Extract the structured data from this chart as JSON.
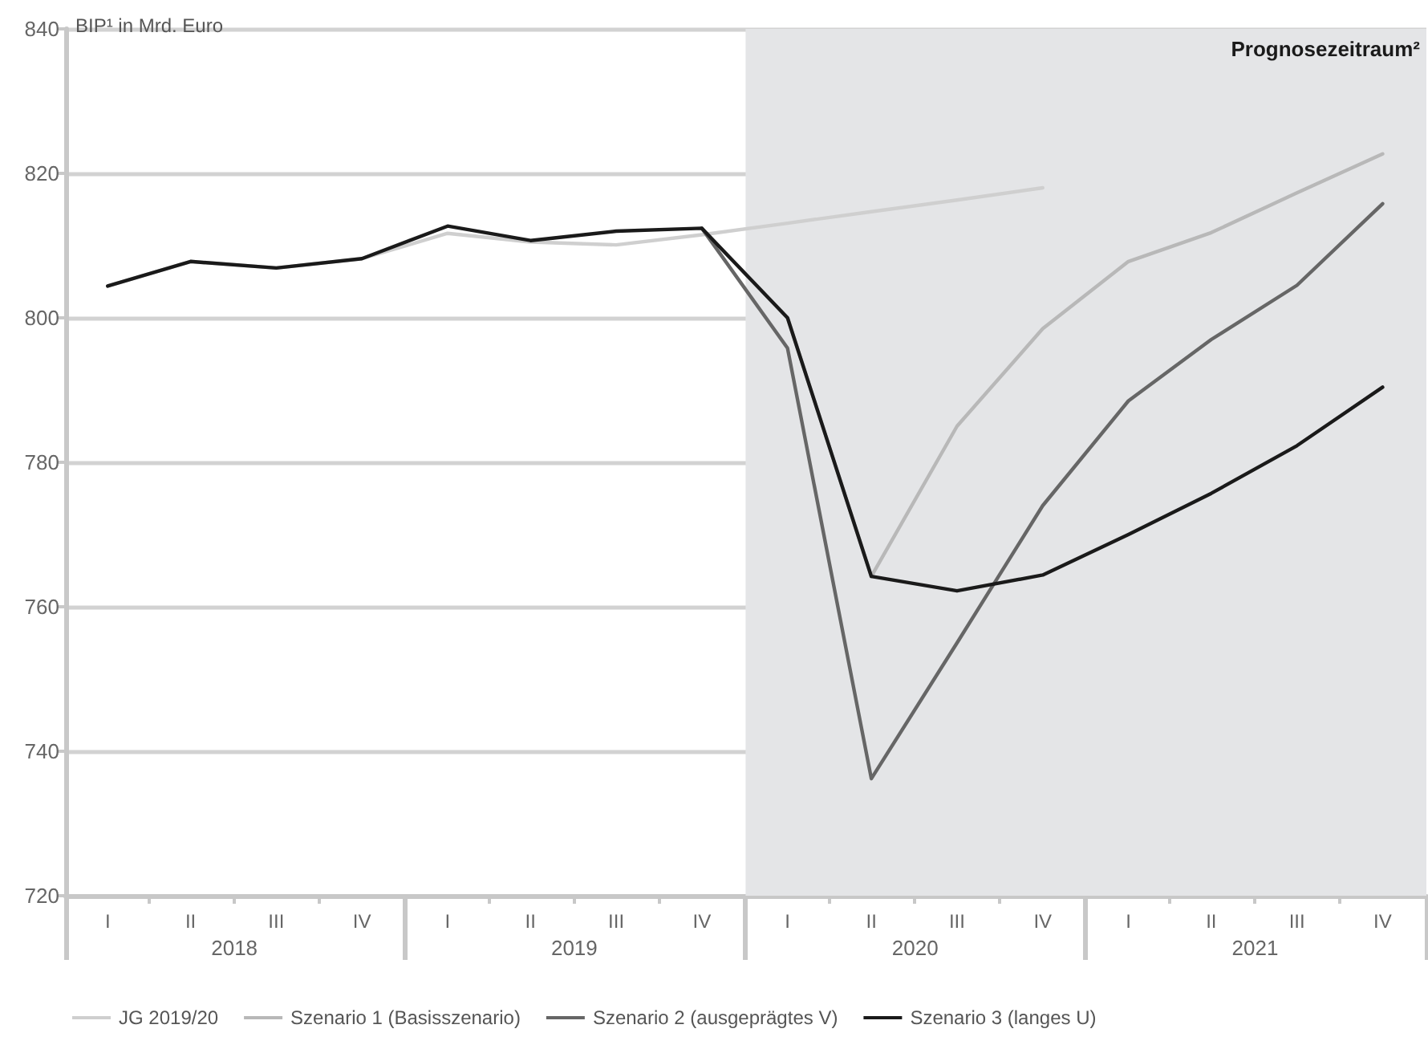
{
  "chart_data": {
    "type": "line",
    "ylabel": "BIP¹ in Mrd. Euro",
    "xlim": [
      "2018-01-01",
      "2022-01-01"
    ],
    "ylim": [
      720,
      840
    ],
    "yticks": [
      720,
      740,
      760,
      780,
      800,
      820,
      840
    ],
    "x": [
      "2018-02-15",
      "2018-05-15",
      "2018-08-15",
      "2018-11-15",
      "2019-02-15",
      "2019-05-15",
      "2019-08-15",
      "2019-11-15",
      "2020-02-15",
      "2020-05-15",
      "2020-08-15",
      "2020-11-15",
      "2021-02-15",
      "2021-05-15",
      "2021-08-15",
      "2021-11-15"
    ],
    "xticks": [
      {
        "value": "2018-07-01",
        "label": "2018"
      },
      {
        "value": "2019-07-01",
        "label": "2019"
      },
      {
        "value": "2020-07-01",
        "label": "2020"
      },
      {
        "value": "2021-07-01",
        "label": "2021"
      }
    ],
    "annotations": [
      "I",
      "II",
      "III",
      "IV",
      "I",
      "II",
      "III",
      "IV",
      "I",
      "II",
      "III",
      "IV",
      "I",
      "II",
      "III",
      "IV"
    ],
    "grid": "y",
    "legend": "bottom left",
    "marker": "none",
    "line_style": "solid",
    "bands": [
      {
        "axis": "x",
        "from": "2020-01-01",
        "to": "2022-01-01",
        "label": "Prognosezeitraum²",
        "color": "#e4e5e7"
      }
    ],
    "series": [
      {
        "name": "JG 2019/20",
        "color": "#cfcfcf",
        "values": [
          804.4,
          807.8,
          806.9,
          808.2,
          811.7,
          810.5,
          810.1,
          811.5,
          813.1,
          814.7,
          816.3,
          818.0,
          null,
          null,
          null,
          null
        ]
      },
      {
        "name": "Szenario 1 (Basisszenario)",
        "color": "#b8b8b8",
        "values": [
          null,
          null,
          null,
          null,
          null,
          null,
          null,
          812.4,
          800.0,
          764.2,
          785.0,
          798.5,
          807.8,
          811.8,
          817.3,
          822.7
        ]
      },
      {
        "name": "Szenario 2 (ausgeprägtes V)",
        "color": "#666666",
        "values": [
          null,
          null,
          null,
          null,
          null,
          null,
          null,
          812.4,
          795.8,
          736.2,
          755.0,
          774.0,
          788.5,
          797.0,
          804.5,
          815.8
        ]
      },
      {
        "name": "Szenario 3 (langes U)",
        "color": "#1a1a1a",
        "values": [
          804.4,
          807.8,
          806.9,
          808.2,
          812.7,
          810.7,
          812.0,
          812.4,
          800.0,
          764.2,
          762.2,
          764.4,
          770.0,
          775.7,
          782.3,
          790.4
        ]
      }
    ]
  }
}
